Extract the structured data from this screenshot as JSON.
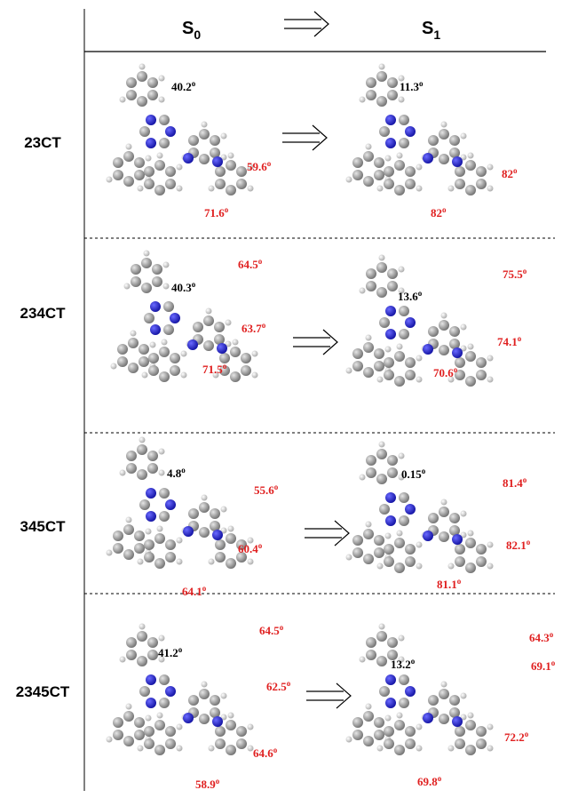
{
  "header": {
    "left": {
      "symbol": "S",
      "subscript": "0"
    },
    "right": {
      "symbol": "S",
      "subscript": "1"
    }
  },
  "degree_mark": "o",
  "rows": [
    {
      "label": "23CT",
      "s0_angles": [
        "40.2",
        "59.6",
        "71.6"
      ],
      "s1_angles": [
        "11.3",
        "82",
        "82"
      ]
    },
    {
      "label": "234CT",
      "s0_angles": [
        "40.3",
        "64.5",
        "63.7",
        "71.5"
      ],
      "s1_angles": [
        "13.6",
        "75.5",
        "74.1",
        "70.6"
      ]
    },
    {
      "label": "345CT",
      "s0_angles": [
        "4.8",
        "55.6",
        "60.4",
        "64.1"
      ],
      "s1_angles": [
        "0.15",
        "81.4",
        "82.1",
        "81.1"
      ]
    },
    {
      "label": "2345CT",
      "s0_angles": [
        "41.2",
        "64.5",
        "62.5",
        "64.6",
        "58.9"
      ],
      "s1_angles": [
        "13.2",
        "64.3",
        "69.1",
        "72.2",
        "69.8"
      ]
    }
  ]
}
